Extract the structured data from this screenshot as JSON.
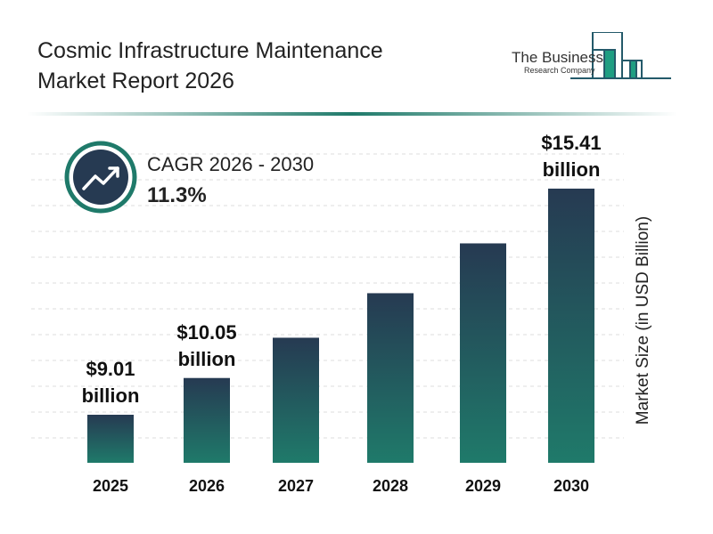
{
  "header": {
    "title_line1": "Cosmic Infrastructure Maintenance",
    "title_line2": "Market Report 2026"
  },
  "logo": {
    "line1": "The Business",
    "line2": "Research Company"
  },
  "cagr": {
    "label": "CAGR 2026 - 2030",
    "value": "11.3%",
    "icon": "trending-up-icon"
  },
  "colors": {
    "bar_top": "#263a52",
    "bar_bottom": "#1f7a6a",
    "accent": "#1f7a6a"
  },
  "chart_data": {
    "type": "bar",
    "categories": [
      "2025",
      "2026",
      "2027",
      "2028",
      "2029",
      "2030"
    ],
    "values": [
      9.01,
      10.05,
      11.19,
      12.45,
      13.86,
      15.41
    ],
    "data_labels": [
      {
        "index": 0,
        "line1": "$9.01",
        "line2": "billion"
      },
      {
        "index": 1,
        "line1": "$10.05",
        "line2": "billion"
      },
      {
        "index": 5,
        "line1": "$15.41",
        "line2": "billion"
      }
    ],
    "title": "Cosmic Infrastructure Maintenance Market Report 2026",
    "xlabel": "",
    "ylabel": "Market Size (in USD Billion)",
    "grid": true
  }
}
